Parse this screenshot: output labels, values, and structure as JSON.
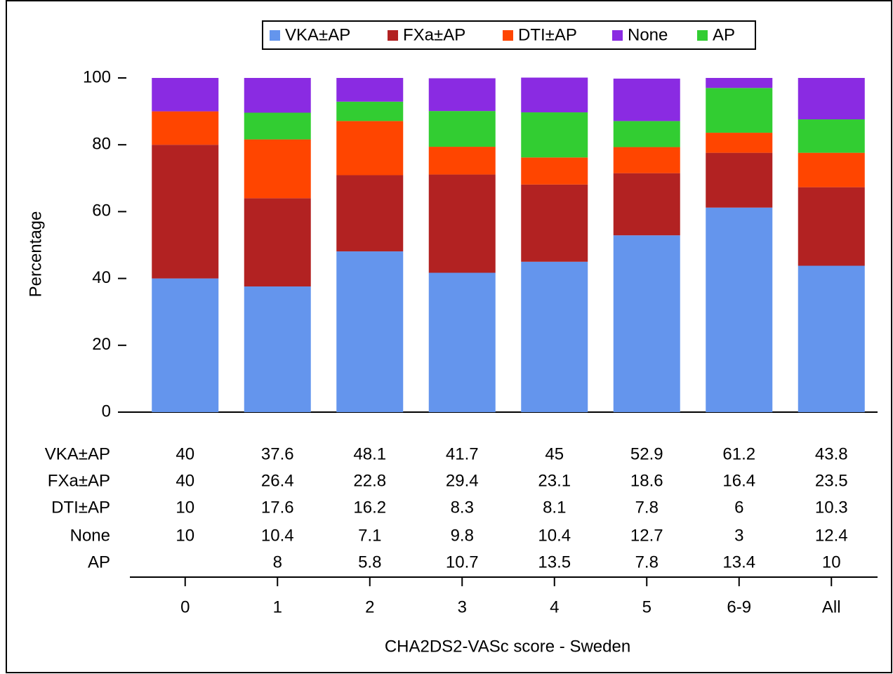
{
  "chart_data": {
    "type": "stacked-bar",
    "x_label": "CHA2DS2-VASc score - Sweden",
    "y_label": "Percentage",
    "categories": [
      "0",
      "1",
      "2",
      "3",
      "4",
      "5",
      "6-9",
      "All"
    ],
    "series": [
      {
        "name": "VKA±AP",
        "color": "#6495ED",
        "values": [
          40,
          37.6,
          48.1,
          41.7,
          45,
          52.9,
          61.2,
          43.8
        ]
      },
      {
        "name": "FXa±AP",
        "color": "#B22222",
        "values": [
          40,
          26.4,
          22.8,
          29.4,
          23.1,
          18.6,
          16.4,
          23.5
        ]
      },
      {
        "name": "DTI±AP",
        "color": "#FF4500",
        "values": [
          10,
          17.6,
          16.2,
          8.3,
          8.1,
          7.8,
          6,
          10.3
        ]
      },
      {
        "name": "None",
        "color": "#8A2BE2",
        "values": [
          10,
          10.4,
          7.1,
          9.8,
          10.4,
          12.7,
          3,
          12.4
        ]
      },
      {
        "name": "AP",
        "color": "#32CD32",
        "values": [
          null,
          8,
          5.8,
          10.7,
          13.5,
          7.8,
          13.4,
          10
        ]
      }
    ],
    "stack_order": [
      "VKA±AP",
      "FXa±AP",
      "DTI±AP",
      "AP",
      "None"
    ],
    "ylim": [
      0,
      100
    ],
    "yticks": [
      0,
      20,
      40,
      60,
      80,
      100
    ],
    "legend": "top"
  }
}
